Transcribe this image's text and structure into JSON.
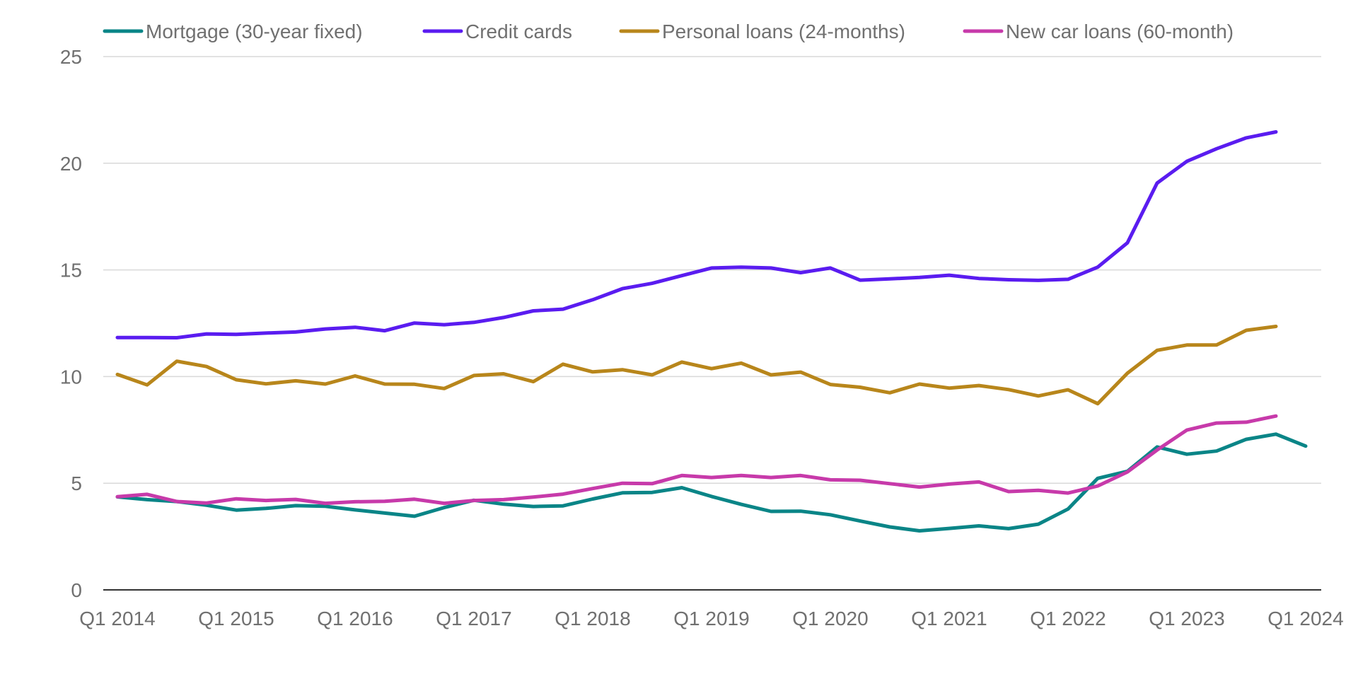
{
  "chart_data": {
    "type": "line",
    "title": "",
    "xlabel": "",
    "ylabel": "",
    "ylim": [
      0,
      25
    ],
    "y_ticks": [
      0,
      5,
      10,
      15,
      20,
      25
    ],
    "grid": true,
    "legend_position": "top",
    "x": [
      "Q1 2014",
      "Q2 2014",
      "Q3 2014",
      "Q4 2014",
      "Q1 2015",
      "Q2 2015",
      "Q3 2015",
      "Q4 2015",
      "Q1 2016",
      "Q2 2016",
      "Q3 2016",
      "Q4 2016",
      "Q1 2017",
      "Q2 2017",
      "Q3 2017",
      "Q4 2017",
      "Q1 2018",
      "Q2 2018",
      "Q3 2018",
      "Q4 2018",
      "Q1 2019",
      "Q2 2019",
      "Q3 2019",
      "Q4 2019",
      "Q1 2020",
      "Q2 2020",
      "Q3 2020",
      "Q4 2020",
      "Q1 2021",
      "Q2 2021",
      "Q3 2021",
      "Q4 2021",
      "Q1 2022",
      "Q2 2022",
      "Q3 2022",
      "Q4 2022",
      "Q1 2023",
      "Q2 2023",
      "Q3 2023",
      "Q4 2023",
      "Q1 2024"
    ],
    "x_tick_labels": [
      "Q1 2014",
      "Q1 2015",
      "Q1 2016",
      "Q1 2017",
      "Q1 2018",
      "Q1 2019",
      "Q1 2020",
      "Q1 2021",
      "Q1 2022",
      "Q1 2023",
      "Q1 2024"
    ],
    "series": [
      {
        "name": "Mortgage (30-year fixed)",
        "color": "#0a8587",
        "values": [
          4.36,
          4.23,
          4.14,
          3.97,
          3.74,
          3.82,
          3.95,
          3.92,
          3.75,
          3.6,
          3.45,
          3.86,
          4.2,
          4.02,
          3.91,
          3.94,
          4.26,
          4.55,
          4.57,
          4.79,
          4.38,
          4.01,
          3.68,
          3.69,
          3.52,
          3.23,
          2.95,
          2.77,
          2.88,
          3.0,
          2.87,
          3.08,
          3.79,
          5.23,
          5.56,
          6.7,
          6.36,
          6.51,
          7.06,
          7.3,
          6.74
        ]
      },
      {
        "name": "Credit cards",
        "color": "#5a1cf0",
        "values": [
          11.83,
          11.83,
          11.82,
          12.0,
          11.98,
          12.04,
          12.09,
          12.23,
          12.31,
          12.15,
          12.51,
          12.43,
          12.54,
          12.77,
          13.08,
          13.16,
          13.6,
          14.12,
          14.37,
          14.73,
          15.09,
          15.13,
          15.09,
          14.87,
          15.09,
          14.52,
          14.58,
          14.65,
          14.75,
          14.6,
          14.54,
          14.51,
          14.56,
          15.13,
          16.27,
          19.07,
          20.09,
          20.68,
          21.19,
          21.47,
          null
        ]
      },
      {
        "name": "Personal loans (24-months)",
        "color": "#b8861b",
        "values": [
          10.1,
          9.61,
          10.72,
          10.47,
          9.85,
          9.66,
          9.8,
          9.65,
          10.03,
          9.65,
          9.64,
          9.44,
          10.05,
          10.13,
          9.76,
          10.58,
          10.22,
          10.32,
          10.08,
          10.68,
          10.37,
          10.63,
          10.08,
          10.21,
          9.63,
          9.5,
          9.24,
          9.65,
          9.46,
          9.58,
          9.39,
          9.09,
          9.38,
          8.73,
          10.16,
          11.23,
          11.48,
          11.48,
          12.17,
          12.35,
          null
        ]
      },
      {
        "name": "New car loans (60-month)",
        "color": "#c73aaa",
        "values": [
          4.37,
          4.48,
          4.14,
          4.07,
          4.27,
          4.19,
          4.24,
          4.06,
          4.13,
          4.15,
          4.25,
          4.06,
          4.19,
          4.23,
          4.35,
          4.49,
          4.75,
          5.0,
          4.98,
          5.36,
          5.27,
          5.36,
          5.27,
          5.36,
          5.16,
          5.14,
          4.98,
          4.82,
          4.96,
          5.06,
          4.61,
          4.67,
          4.54,
          4.87,
          5.53,
          6.56,
          7.49,
          7.82,
          7.86,
          8.15,
          null
        ]
      }
    ]
  }
}
